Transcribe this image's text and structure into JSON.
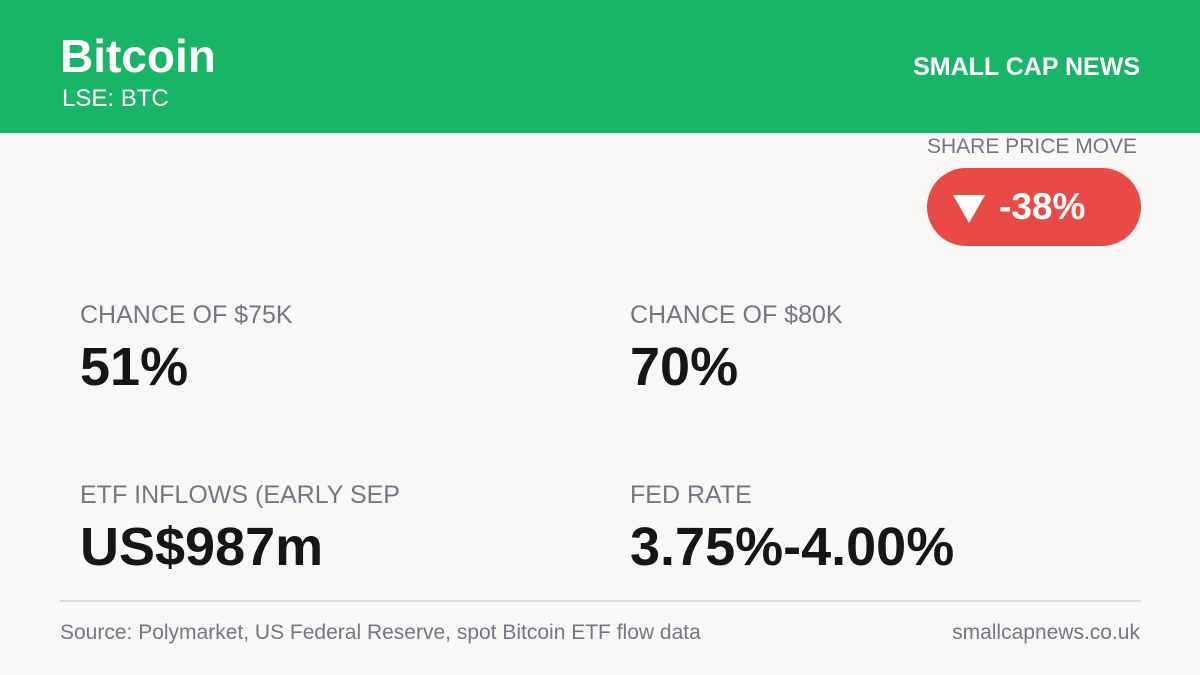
{
  "header": {
    "title": "Bitcoin",
    "ticker": "LSE: BTC",
    "brand": "SMALL CAP NEWS"
  },
  "price_move": {
    "label": "SHARE PRICE MOVE",
    "value": "-38%",
    "direction_icon": "triangle-down-icon"
  },
  "stats": [
    {
      "label": "CHANCE OF $75K",
      "value": "51%"
    },
    {
      "label": "CHANCE OF $80K",
      "value": "70%"
    },
    {
      "label": "ETF INFLOWS (EARLY SEP",
      "value": "US$987m"
    },
    {
      "label": "FED RATE",
      "value": "3.75%-4.00%"
    }
  ],
  "footer": {
    "source": "Source: Polymarket, US Federal Reserve, spot Bitcoin ETF flow data",
    "site": "smallcapnews.co.uk"
  },
  "colors": {
    "header_bg": "#18b566",
    "negative": "#e84a46",
    "label": "#737784",
    "value": "#161616",
    "page_bg": "#f9f8f7"
  }
}
